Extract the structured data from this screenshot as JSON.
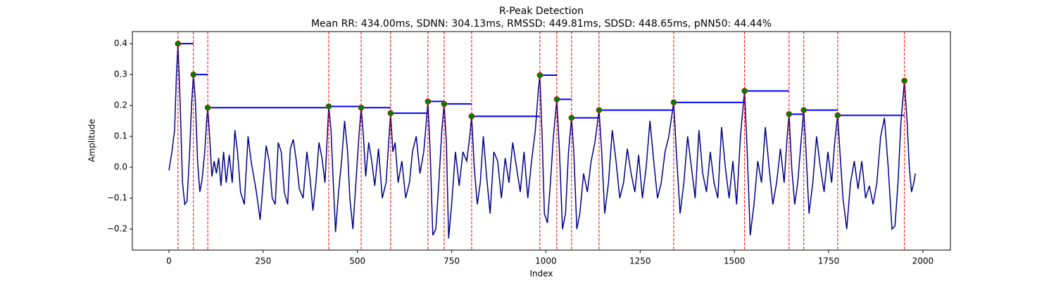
{
  "chart_data": {
    "type": "line",
    "title": "R-Peak Detection",
    "subtitle": "Mean RR: 434.00ms, SDNN: 304.13ms, RMSSD: 449.81ms, SDSD: 448.65ms, pNN50: 44.44%",
    "xlabel": "Index",
    "ylabel": "Amplitude",
    "xlim": [
      -97,
      2073
    ],
    "ylim": [
      -0.268,
      0.439
    ],
    "xticks": [
      0,
      250,
      500,
      750,
      1000,
      1250,
      1500,
      1750,
      2000
    ],
    "yticks": [
      {
        "value": -0.2,
        "label": "−0.2"
      },
      {
        "value": -0.1,
        "label": "−0.1"
      },
      {
        "value": 0,
        "label": "0.0"
      },
      0.1,
      0.2,
      0.3,
      0.4
    ],
    "series": [
      {
        "color": "#00008b",
        "x": [
          0,
          8,
          15,
          20,
          24,
          30,
          36,
          42,
          48,
          55,
          60,
          65,
          70,
          76,
          82,
          88,
          95,
          100,
          103,
          108,
          114,
          120,
          126,
          132,
          138,
          145,
          152,
          160,
          168,
          175,
          182,
          190,
          200,
          210,
          218,
          225,
          232,
          242,
          250,
          258,
          266,
          274,
          282,
          290,
          298,
          306,
          315,
          322,
          330,
          338,
          346,
          356,
          366,
          374,
          382,
          390,
          398,
          406,
          414,
          420,
          424,
          430,
          436,
          442,
          450,
          458,
          466,
          474,
          480,
          488,
          496,
          504,
          510,
          516,
          522,
          530,
          538,
          546,
          556,
          566,
          576,
          584,
          588,
          594,
          600,
          608,
          618,
          628,
          638,
          646,
          656,
          666,
          676,
          683,
          687,
          693,
          700,
          708,
          716,
          724,
          730,
          736,
          742,
          750,
          760,
          770,
          780,
          790,
          798,
          803,
          810,
          818,
          826,
          834,
          842,
          852,
          862,
          872,
          882,
          892,
          902,
          912,
          922,
          932,
          942,
          952,
          962,
          972,
          980,
          984,
          990,
          996,
          1004,
          1012,
          1020,
          1029,
          1036,
          1044,
          1052,
          1060,
          1068,
          1074,
          1082,
          1090,
          1100,
          1110,
          1120,
          1130,
          1141,
          1148,
          1156,
          1166,
          1176,
          1186,
          1196,
          1206,
          1216,
          1226,
          1236,
          1246,
          1256,
          1266,
          1276,
          1286,
          1296,
          1306,
          1316,
          1326,
          1339,
          1346,
          1356,
          1366,
          1376,
          1386,
          1396,
          1406,
          1416,
          1426,
          1436,
          1446,
          1456,
          1466,
          1476,
          1486,
          1496,
          1506,
          1516,
          1527,
          1534,
          1542,
          1552,
          1562,
          1572,
          1582,
          1592,
          1602,
          1612,
          1622,
          1632,
          1640,
          1645,
          1652,
          1660,
          1668,
          1678,
          1684,
          1690,
          1698,
          1708,
          1718,
          1728,
          1738,
          1748,
          1758,
          1766,
          1774,
          1780,
          1788,
          1798,
          1808,
          1818,
          1828,
          1838,
          1848,
          1858,
          1868,
          1878,
          1888,
          1898,
          1908,
          1918,
          1926,
          1934,
          1942,
          1951,
          1958,
          1964,
          1970,
          1976,
          1980
        ],
        "values": [
          -0.01,
          0.05,
          0.12,
          0.3,
          0.4,
          0.2,
          -0.05,
          -0.12,
          -0.11,
          0.05,
          0.2,
          0.3,
          0.22,
          0.02,
          -0.08,
          -0.04,
          0.05,
          0.15,
          0.193,
          0.1,
          -0.03,
          0.02,
          -0.02,
          0.03,
          -0.06,
          0.05,
          -0.05,
          0.04,
          -0.05,
          0.12,
          0.05,
          -0.08,
          -0.12,
          0.1,
          0.02,
          -0.03,
          -0.08,
          -0.17,
          -0.05,
          0.07,
          0.02,
          -0.1,
          -0.12,
          0.08,
          0.05,
          -0.08,
          -0.12,
          0.06,
          0.09,
          0.02,
          -0.07,
          -0.1,
          0.05,
          -0.03,
          -0.14,
          -0.05,
          0.08,
          0.03,
          -0.05,
          0.1,
          0.197,
          0.12,
          -0.05,
          -0.21,
          -0.08,
          0.02,
          0.15,
          0.05,
          -0.1,
          -0.2,
          -0.05,
          0.1,
          0.193,
          0.1,
          -0.03,
          0.08,
          0.02,
          -0.06,
          0.06,
          -0.1,
          -0.05,
          0.1,
          0.175,
          0.05,
          0.08,
          -0.05,
          0.02,
          -0.1,
          -0.05,
          0.05,
          0.1,
          -0.02,
          0.05,
          0.15,
          0.213,
          0.05,
          -0.22,
          -0.2,
          -0.05,
          0.12,
          0.205,
          0.08,
          -0.23,
          -0.12,
          0.05,
          -0.06,
          0.05,
          0.02,
          0.1,
          0.165,
          0.0,
          -0.12,
          -0.05,
          0.1,
          -0.02,
          -0.15,
          0.05,
          0.02,
          -0.1,
          0.03,
          -0.05,
          0.08,
          0.0,
          -0.08,
          0.05,
          -0.1,
          0.02,
          0.12,
          0.25,
          0.298,
          0.1,
          -0.15,
          -0.18,
          -0.05,
          0.1,
          0.22,
          0.05,
          -0.2,
          -0.15,
          0.05,
          0.16,
          0.05,
          -0.2,
          -0.15,
          -0.02,
          -0.08,
          0.02,
          0.08,
          0.185,
          0.05,
          -0.15,
          -0.05,
          0.12,
          0.02,
          -0.1,
          -0.05,
          0.06,
          -0.02,
          -0.08,
          0.04,
          -0.1,
          0.0,
          0.15,
          0.02,
          -0.1,
          -0.05,
          0.05,
          0.1,
          0.21,
          0.05,
          -0.15,
          -0.05,
          0.1,
          0.0,
          -0.1,
          0.12,
          -0.02,
          -0.08,
          0.05,
          -0.05,
          -0.1,
          0.13,
          0.0,
          -0.1,
          0.02,
          -0.12,
          0.1,
          0.247,
          0.05,
          -0.22,
          -0.12,
          0.02,
          -0.05,
          0.13,
          0.0,
          -0.12,
          -0.05,
          0.06,
          -0.05,
          0.1,
          0.172,
          0.0,
          -0.12,
          -0.05,
          0.1,
          0.185,
          0.05,
          -0.15,
          -0.05,
          0.1,
          0.0,
          -0.08,
          0.05,
          -0.05,
          0.08,
          0.168,
          0.05,
          -0.1,
          -0.2,
          -0.05,
          0.02,
          -0.07,
          0.02,
          -0.1,
          -0.06,
          -0.12,
          -0.05,
          0.1,
          0.16,
          0.0,
          -0.2,
          -0.19,
          -0.05,
          0.15,
          0.28,
          0.15,
          0.0,
          -0.08,
          -0.05,
          -0.02
        ]
      }
    ],
    "peaks": {
      "color": "#008000",
      "edge_color": "#ff0000",
      "line_color": "#ff0000",
      "interval_color": "#0000ff",
      "x": [
        24,
        65,
        103,
        424,
        510,
        588,
        687,
        730,
        803,
        984,
        1029,
        1068,
        1141,
        1339,
        1527,
        1645,
        1684,
        1774,
        1951
      ],
      "values": [
        0.4,
        0.3,
        0.193,
        0.197,
        0.193,
        0.175,
        0.213,
        0.205,
        0.165,
        0.298,
        0.22,
        0.16,
        0.185,
        0.21,
        0.247,
        0.172,
        0.185,
        0.168,
        0.28
      ]
    }
  }
}
